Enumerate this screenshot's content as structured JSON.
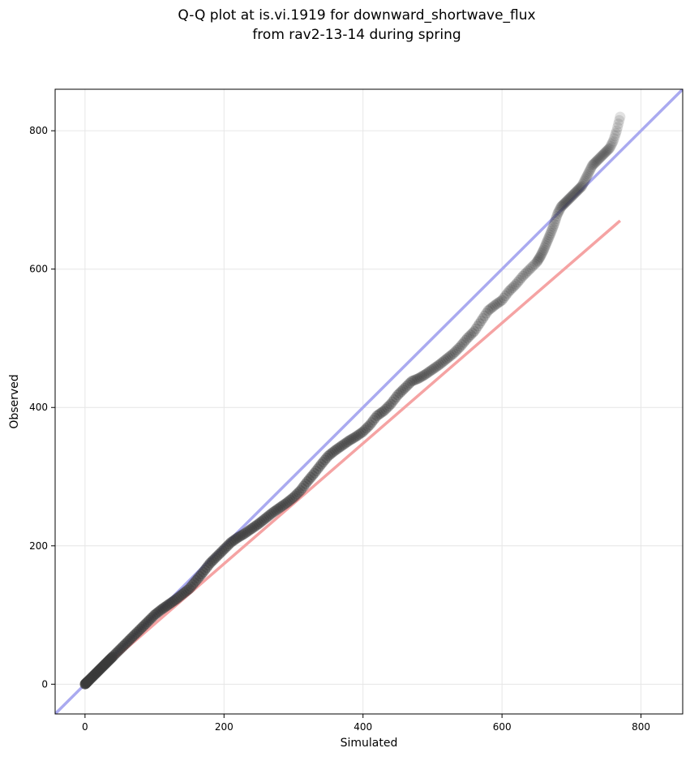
{
  "chart_data": {
    "type": "scatter",
    "title_line1": "Q-Q plot at is.vi.1919 for downward_shortwave_flux",
    "title_line2": "from rav2-13-14 during spring",
    "xlabel": "Simulated",
    "ylabel": "Observed",
    "xlim": [
      -43,
      860
    ],
    "ylim": [
      -43,
      860
    ],
    "xticks": [
      0,
      200,
      400,
      600,
      800
    ],
    "yticks": [
      0,
      200,
      400,
      600,
      800
    ],
    "grid": true,
    "colors": {
      "identity_line": "#aaaaf0",
      "fit_line": "#f5a3a3",
      "points": "#3a3a3a"
    },
    "identity_line": {
      "x": [
        -43,
        860
      ],
      "y": [
        -43,
        860
      ]
    },
    "fit_line": {
      "x": [
        0,
        770
      ],
      "y": [
        0,
        670
      ]
    },
    "quantiles": {
      "x": [
        0,
        2,
        5,
        10,
        15,
        20,
        25,
        30,
        35,
        40,
        50,
        60,
        70,
        80,
        90,
        100,
        110,
        120,
        130,
        140,
        150,
        160,
        170,
        180,
        190,
        200,
        210,
        220,
        230,
        240,
        250,
        260,
        270,
        280,
        290,
        300,
        310,
        320,
        330,
        340,
        350,
        360,
        370,
        380,
        390,
        400,
        410,
        420,
        430,
        440,
        450,
        460,
        470,
        480,
        490,
        500,
        510,
        520,
        530,
        540,
        550,
        560,
        570,
        580,
        590,
        600,
        610,
        620,
        630,
        640,
        650,
        655,
        660,
        665,
        670,
        675,
        680,
        685,
        690,
        695,
        700,
        705,
        710,
        715,
        720,
        725,
        730,
        735,
        740,
        745,
        750,
        755,
        760,
        765,
        770
      ],
      "y": [
        0,
        2,
        5,
        10,
        15,
        20,
        25,
        30,
        35,
        40,
        50,
        60,
        70,
        80,
        90,
        100,
        108,
        115,
        122,
        130,
        138,
        150,
        162,
        175,
        185,
        195,
        205,
        212,
        218,
        225,
        232,
        240,
        248,
        255,
        262,
        270,
        280,
        293,
        305,
        318,
        330,
        338,
        345,
        352,
        358,
        365,
        375,
        388,
        395,
        405,
        418,
        428,
        438,
        442,
        448,
        455,
        462,
        470,
        478,
        488,
        500,
        510,
        525,
        540,
        548,
        555,
        568,
        578,
        590,
        600,
        610,
        618,
        628,
        640,
        652,
        665,
        680,
        690,
        695,
        700,
        705,
        710,
        715,
        720,
        730,
        740,
        750,
        755,
        760,
        765,
        770,
        775,
        785,
        800,
        820
      ]
    }
  }
}
